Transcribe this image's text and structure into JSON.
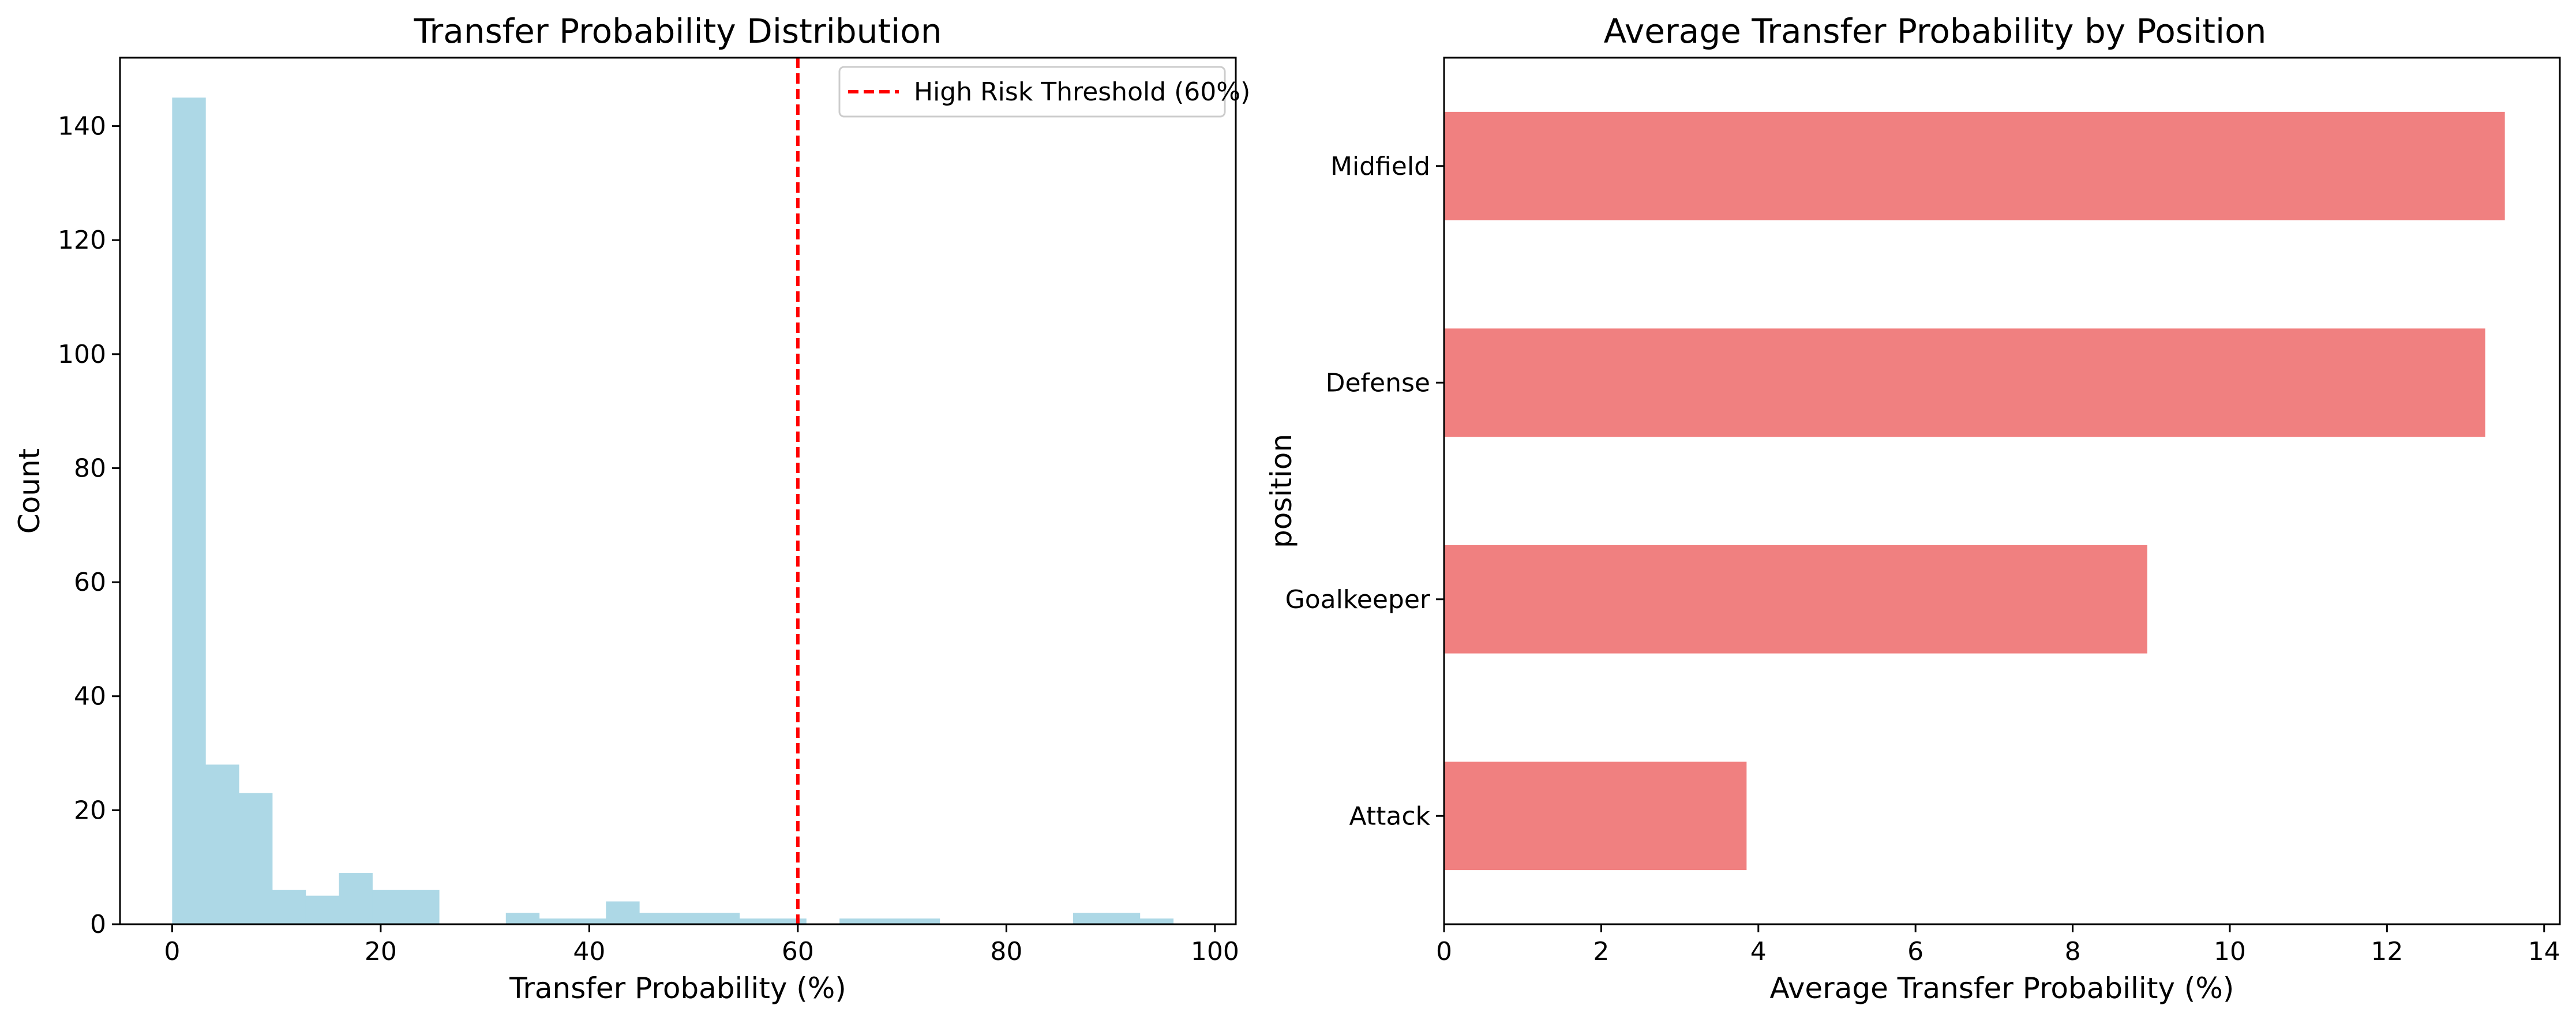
{
  "chart_data": [
    {
      "type": "bar",
      "subtype": "histogram",
      "title": "Transfer Probability Distribution",
      "xlabel": "Transfer Probability (%)",
      "ylabel": "Count",
      "xlim": [
        -5,
        102
      ],
      "ylim": [
        0,
        152
      ],
      "xticks": [
        0,
        20,
        40,
        60,
        80,
        100
      ],
      "yticks": [
        0,
        20,
        40,
        60,
        80,
        100,
        120,
        140
      ],
      "bin_width": 3.2,
      "bins": [
        {
          "x0": 0.0,
          "x1": 3.2,
          "count": 145
        },
        {
          "x0": 3.2,
          "x1": 6.4,
          "count": 28
        },
        {
          "x0": 6.4,
          "x1": 9.6,
          "count": 23
        },
        {
          "x0": 9.6,
          "x1": 12.8,
          "count": 6
        },
        {
          "x0": 12.8,
          "x1": 16.0,
          "count": 5
        },
        {
          "x0": 16.0,
          "x1": 19.2,
          "count": 9
        },
        {
          "x0": 19.2,
          "x1": 22.4,
          "count": 6
        },
        {
          "x0": 22.4,
          "x1": 25.6,
          "count": 6
        },
        {
          "x0": 25.6,
          "x1": 28.8,
          "count": 0
        },
        {
          "x0": 28.8,
          "x1": 32.0,
          "count": 0
        },
        {
          "x0": 32.0,
          "x1": 35.2,
          "count": 2
        },
        {
          "x0": 35.2,
          "x1": 38.4,
          "count": 1
        },
        {
          "x0": 38.4,
          "x1": 41.6,
          "count": 1
        },
        {
          "x0": 41.6,
          "x1": 44.8,
          "count": 4
        },
        {
          "x0": 44.8,
          "x1": 48.0,
          "count": 2
        },
        {
          "x0": 48.0,
          "x1": 51.2,
          "count": 2
        },
        {
          "x0": 51.2,
          "x1": 54.4,
          "count": 2
        },
        {
          "x0": 54.4,
          "x1": 57.6,
          "count": 1
        },
        {
          "x0": 57.6,
          "x1": 60.8,
          "count": 1
        },
        {
          "x0": 60.8,
          "x1": 64.0,
          "count": 0
        },
        {
          "x0": 64.0,
          "x1": 67.2,
          "count": 1
        },
        {
          "x0": 67.2,
          "x1": 70.4,
          "count": 1
        },
        {
          "x0": 70.4,
          "x1": 73.6,
          "count": 1
        },
        {
          "x0": 73.6,
          "x1": 76.8,
          "count": 0
        },
        {
          "x0": 76.8,
          "x1": 80.0,
          "count": 0
        },
        {
          "x0": 80.0,
          "x1": 83.2,
          "count": 0
        },
        {
          "x0": 83.2,
          "x1": 86.4,
          "count": 0
        },
        {
          "x0": 86.4,
          "x1": 89.6,
          "count": 2
        },
        {
          "x0": 89.6,
          "x1": 92.8,
          "count": 2
        },
        {
          "x0": 92.8,
          "x1": 96.0,
          "count": 1
        }
      ],
      "bar_color": "#add8e6",
      "threshold": {
        "value": 60,
        "label": "High Risk Threshold (60%)",
        "color": "#ff0000",
        "style": "dashed"
      },
      "legend_position": "top-right",
      "grid": false
    },
    {
      "type": "bar",
      "orientation": "horizontal",
      "title": "Average Transfer Probability by Position",
      "xlabel": "Average Transfer Probability (%)",
      "ylabel": "position",
      "xlim": [
        0,
        14.2
      ],
      "xticks": [
        0,
        2,
        4,
        6,
        8,
        10,
        12,
        14
      ],
      "categories": [
        "Midfield",
        "Defense",
        "Goalkeeper",
        "Attack"
      ],
      "values": [
        13.5,
        13.25,
        8.95,
        3.85
      ],
      "bar_color": "#f08080",
      "grid": false
    }
  ]
}
